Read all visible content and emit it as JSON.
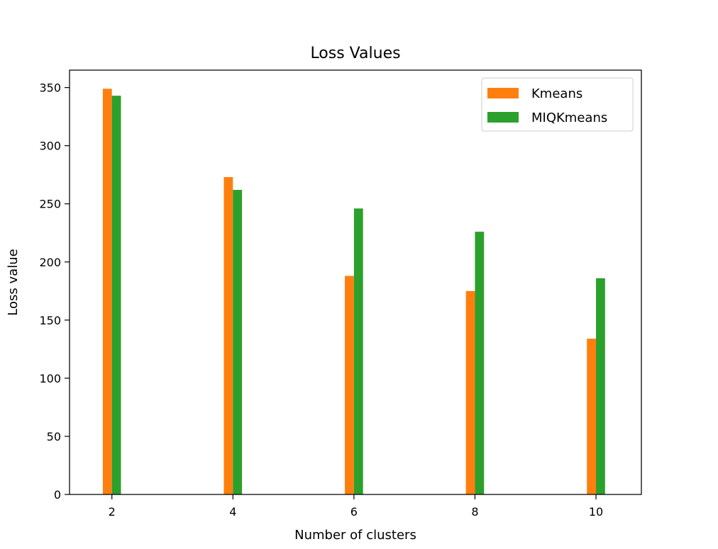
{
  "chart_data": {
    "type": "bar",
    "title": "Loss Values",
    "xlabel": "Number of clusters",
    "ylabel": "Loss value",
    "categories": [
      "2",
      "4",
      "6",
      "8",
      "10"
    ],
    "x": [
      2,
      4,
      6,
      8,
      10
    ],
    "series": [
      {
        "name": "Kmeans",
        "values": [
          349,
          273,
          188,
          175,
          134
        ],
        "color": "#ff7f0e"
      },
      {
        "name": "MIQKmeans",
        "values": [
          343,
          262,
          246,
          226,
          186
        ],
        "color": "#2ca02c"
      }
    ],
    "ylim": [
      0,
      365
    ],
    "xlim": [
      1.3,
      10.75
    ],
    "yticks": [
      0,
      50,
      100,
      150,
      200,
      250,
      300,
      350
    ],
    "xticks": [
      2,
      4,
      6,
      8,
      10
    ],
    "bar_width_units": 0.3,
    "grid": false,
    "legend_position": "top-right"
  }
}
